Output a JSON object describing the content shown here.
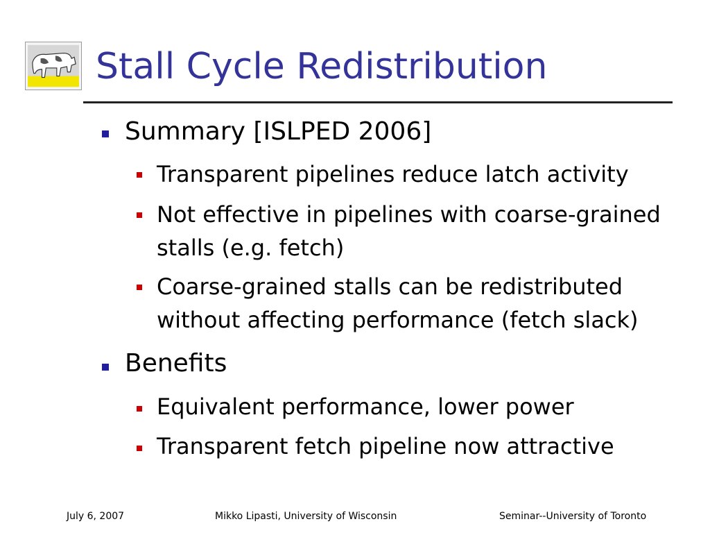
{
  "slide": {
    "title": "Stall Cycle Redistribution",
    "logo_icon": "cow-painting-icon",
    "bullets": [
      {
        "text": "Summary [ISLPED 2006]",
        "sub": [
          "Transparent pipelines reduce latch activity",
          "Not effective in pipelines with coarse-grained stalls (e.g. fetch)",
          "Coarse-grained stalls can be redistributed without affecting performance (fetch slack)"
        ]
      },
      {
        "text": "Benefits",
        "sub": [
          "Equivalent performance, lower power",
          "Transparent fetch pipeline now attractive"
        ]
      }
    ]
  },
  "footer": {
    "date": "July 6, 2007",
    "author": "Mikko Lipasti, University of Wisconsin",
    "venue": "Seminar--University of Toronto"
  },
  "colors": {
    "title": "#333399",
    "level1_bullet": "#1f1fa0",
    "level2_bullet": "#cc0000"
  }
}
